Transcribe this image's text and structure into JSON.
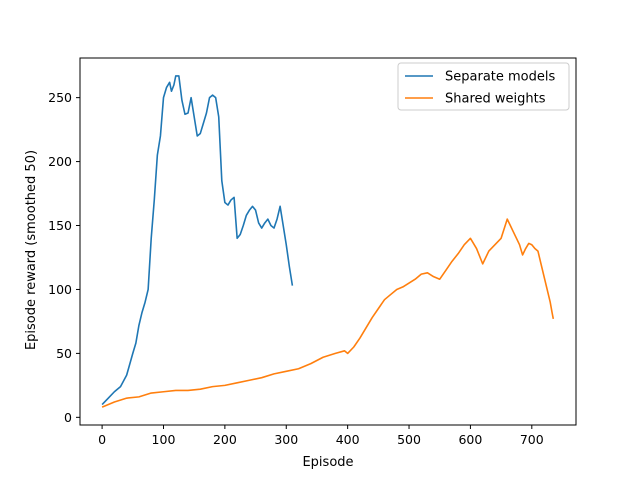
{
  "chart_data": {
    "type": "line",
    "title": "",
    "xlabel": "Episode",
    "ylabel": "Episode reward (smoothed 50)",
    "xlim": [
      -36,
      772
    ],
    "ylim": [
      -6,
      281
    ],
    "xticks": [
      0,
      100,
      200,
      300,
      400,
      500,
      600,
      700
    ],
    "yticks": [
      0,
      50,
      100,
      150,
      200,
      250
    ],
    "grid": false,
    "legend": "top-right",
    "series": [
      {
        "name": "Separate models",
        "color": "#1f77b4",
        "points": [
          [
            0,
            10
          ],
          [
            10,
            15
          ],
          [
            20,
            20
          ],
          [
            30,
            24
          ],
          [
            40,
            33
          ],
          [
            50,
            50
          ],
          [
            55,
            58
          ],
          [
            60,
            72
          ],
          [
            65,
            82
          ],
          [
            70,
            90
          ],
          [
            75,
            100
          ],
          [
            80,
            140
          ],
          [
            85,
            170
          ],
          [
            90,
            205
          ],
          [
            95,
            220
          ],
          [
            100,
            250
          ],
          [
            105,
            258
          ],
          [
            110,
            262
          ],
          [
            113,
            255
          ],
          [
            117,
            260
          ],
          [
            120,
            267
          ],
          [
            125,
            267
          ],
          [
            130,
            248
          ],
          [
            135,
            237
          ],
          [
            140,
            238
          ],
          [
            145,
            250
          ],
          [
            150,
            235
          ],
          [
            155,
            220
          ],
          [
            160,
            222
          ],
          [
            165,
            230
          ],
          [
            170,
            238
          ],
          [
            175,
            250
          ],
          [
            180,
            252
          ],
          [
            185,
            250
          ],
          [
            190,
            235
          ],
          [
            195,
            185
          ],
          [
            200,
            168
          ],
          [
            205,
            166
          ],
          [
            210,
            170
          ],
          [
            215,
            172
          ],
          [
            220,
            140
          ],
          [
            225,
            143
          ],
          [
            230,
            150
          ],
          [
            235,
            158
          ],
          [
            240,
            162
          ],
          [
            245,
            165
          ],
          [
            250,
            162
          ],
          [
            255,
            152
          ],
          [
            260,
            148
          ],
          [
            265,
            152
          ],
          [
            270,
            155
          ],
          [
            275,
            150
          ],
          [
            280,
            148
          ],
          [
            285,
            155
          ],
          [
            290,
            165
          ],
          [
            295,
            150
          ],
          [
            300,
            135
          ],
          [
            305,
            118
          ],
          [
            310,
            103
          ]
        ]
      },
      {
        "name": "Shared weights",
        "color": "#ff7f0e",
        "points": [
          [
            0,
            8
          ],
          [
            20,
            12
          ],
          [
            40,
            15
          ],
          [
            60,
            16
          ],
          [
            80,
            19
          ],
          [
            100,
            20
          ],
          [
            120,
            21
          ],
          [
            140,
            21
          ],
          [
            160,
            22
          ],
          [
            180,
            24
          ],
          [
            200,
            25
          ],
          [
            220,
            27
          ],
          [
            240,
            29
          ],
          [
            260,
            31
          ],
          [
            280,
            34
          ],
          [
            300,
            36
          ],
          [
            320,
            38
          ],
          [
            340,
            42
          ],
          [
            360,
            47
          ],
          [
            380,
            50
          ],
          [
            395,
            52
          ],
          [
            400,
            50
          ],
          [
            410,
            55
          ],
          [
            420,
            62
          ],
          [
            430,
            70
          ],
          [
            440,
            78
          ],
          [
            450,
            85
          ],
          [
            460,
            92
          ],
          [
            470,
            96
          ],
          [
            480,
            100
          ],
          [
            490,
            102
          ],
          [
            500,
            105
          ],
          [
            510,
            108
          ],
          [
            520,
            112
          ],
          [
            530,
            113
          ],
          [
            540,
            110
          ],
          [
            550,
            108
          ],
          [
            560,
            115
          ],
          [
            570,
            122
          ],
          [
            580,
            128
          ],
          [
            590,
            135
          ],
          [
            600,
            140
          ],
          [
            610,
            132
          ],
          [
            620,
            120
          ],
          [
            630,
            130
          ],
          [
            640,
            135
          ],
          [
            650,
            140
          ],
          [
            660,
            155
          ],
          [
            665,
            150
          ],
          [
            670,
            145
          ],
          [
            675,
            140
          ],
          [
            680,
            135
          ],
          [
            685,
            127
          ],
          [
            690,
            132
          ],
          [
            695,
            136
          ],
          [
            700,
            135
          ],
          [
            705,
            132
          ],
          [
            710,
            130
          ],
          [
            715,
            120
          ],
          [
            720,
            110
          ],
          [
            725,
            100
          ],
          [
            730,
            90
          ],
          [
            733,
            82
          ],
          [
            735,
            77
          ]
        ]
      }
    ]
  }
}
